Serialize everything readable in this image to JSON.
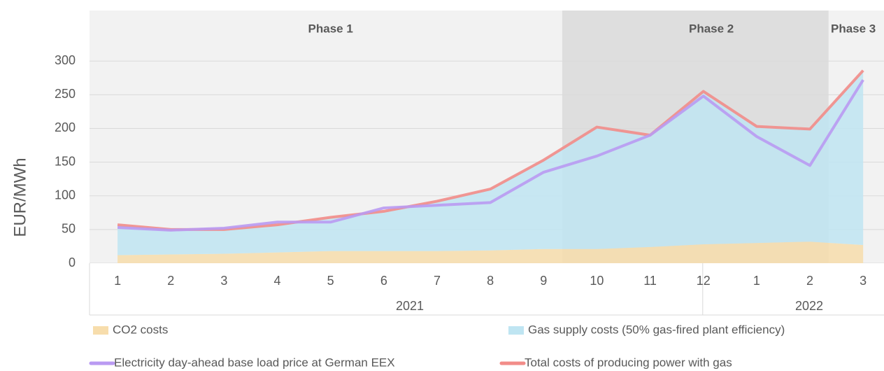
{
  "chart_data": {
    "type": "stacked-area-line",
    "y_label": "EUR/MWh",
    "categories": [
      "1",
      "2",
      "3",
      "4",
      "5",
      "6",
      "7",
      "8",
      "9",
      "10",
      "11",
      "12",
      "1",
      "2",
      "3"
    ],
    "x_groups": [
      "2021",
      "2022"
    ],
    "phases": [
      "Phase 1",
      "Phase 2",
      "Phase 3"
    ],
    "series": [
      {
        "name": "CO2 costs",
        "kind": "area",
        "color": "#f7ddac",
        "values": [
          12,
          13,
          14,
          16,
          18,
          18,
          18,
          19,
          21,
          21,
          24,
          28,
          30,
          32,
          27
        ]
      },
      {
        "name": "Gas supply costs (50% gas-fired plant efficiency)",
        "kind": "area",
        "color": "#bfe5f2",
        "values": [
          45,
          37,
          36,
          41,
          50,
          59,
          74,
          91,
          132,
          181,
          166,
          227,
          173,
          167,
          259
        ]
      },
      {
        "name": "Electricity day-ahead base load price at German EEX",
        "kind": "line",
        "color": "#b99af2",
        "values": [
          53,
          49,
          52,
          61,
          61,
          82,
          86,
          90,
          135,
          159,
          190,
          248,
          188,
          145,
          272
        ]
      },
      {
        "name": "Total costs of producing power with gas",
        "kind": "line",
        "color": "#f28c88",
        "values": [
          57,
          50,
          50,
          57,
          68,
          77,
          92,
          110,
          153,
          202,
          190,
          255,
          203,
          199,
          286
        ]
      }
    ],
    "ylim": [
      0,
      375
    ],
    "yticks": [
      0,
      50,
      100,
      150,
      200,
      250,
      300
    ],
    "grid": true
  }
}
